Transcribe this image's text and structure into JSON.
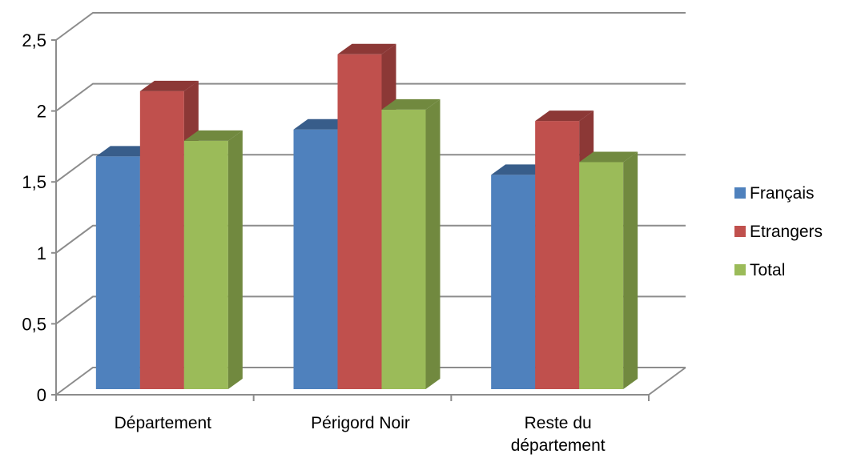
{
  "chart_data": {
    "type": "bar",
    "title": "",
    "xlabel": "",
    "ylabel": "",
    "ylim": [
      0,
      2.5
    ],
    "yticks": [
      "0",
      "0,5",
      "1",
      "1,5",
      "2",
      "2,5"
    ],
    "grid": true,
    "legend": "right",
    "categories": [
      [
        "Département"
      ],
      [
        "Périgord Noir"
      ],
      [
        "Reste du",
        "département"
      ]
    ],
    "series": [
      {
        "name": "Français",
        "color": "#4F81BD",
        "side": "#385D8A",
        "values": [
          1.64,
          1.83,
          1.51
        ]
      },
      {
        "name": "Etrangers",
        "color": "#C0504D",
        "side": "#8C3836",
        "values": [
          2.1,
          2.36,
          1.89
        ]
      },
      {
        "name": "Total",
        "color": "#9BBB59",
        "side": "#71893F",
        "values": [
          1.75,
          1.97,
          1.6
        ]
      }
    ]
  }
}
